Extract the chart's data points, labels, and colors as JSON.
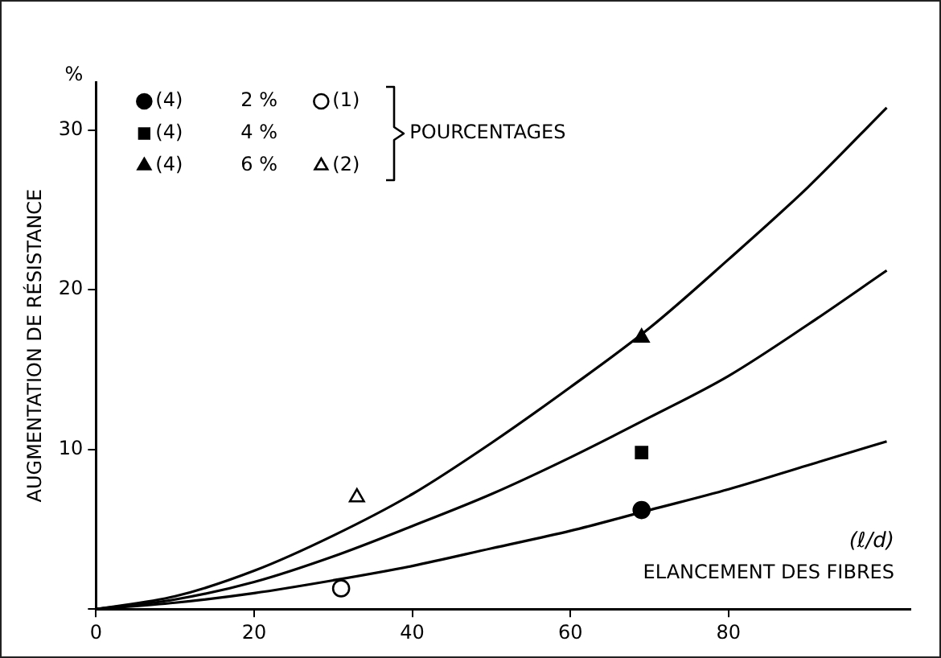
{
  "chart_data": {
    "type": "line",
    "ylabel": "AUGMENTATION DE RÉSISTANCE",
    "xlabel": "ELANCEMENT DES FIBRES",
    "annotations": [
      "2 %",
      "4 %",
      "6 %",
      "POURCENTAGES",
      "%",
      "(ℓ/d)"
    ],
    "xlim": [
      0,
      103
    ],
    "ylim": [
      0,
      33
    ],
    "xticks": [
      0,
      20,
      40,
      60,
      80
    ],
    "yticks": [
      {
        "value": 0,
        "label": null
      },
      10,
      20,
      30
    ],
    "grid": false,
    "legend": "top left",
    "series": [
      {
        "type": "line",
        "color": "#000000",
        "x": [
          0,
          10,
          20,
          30,
          40,
          50,
          60,
          70,
          80,
          90,
          100
        ],
        "values": [
          0,
          0.8,
          2.4,
          4.6,
          7.2,
          10.4,
          13.9,
          17.6,
          21.9,
          26.4,
          31.4
        ]
      },
      {
        "type": "line",
        "color": "#000000",
        "x": [
          0,
          10,
          20,
          30,
          40,
          50,
          60,
          70,
          80,
          90,
          100
        ],
        "values": [
          0,
          0.6,
          1.7,
          3.3,
          5.2,
          7.2,
          9.5,
          12,
          14.6,
          17.8,
          21.2
        ]
      },
      {
        "type": "line",
        "color": "#000000",
        "x": [
          0,
          10,
          20,
          30,
          40,
          50,
          60,
          70,
          80,
          90,
          100
        ],
        "values": [
          0,
          0.4,
          1,
          1.8,
          2.7,
          3.8,
          4.9,
          6.2,
          7.5,
          9,
          10.5
        ]
      },
      {
        "type": "scatter",
        "name": "(4)",
        "marker": "circle",
        "color": "#000000",
        "x": [
          69
        ],
        "values": [
          6.2
        ]
      },
      {
        "type": "scatter",
        "name": "(4)",
        "marker": "square",
        "color": "#000000",
        "x": [
          69
        ],
        "values": [
          9.8
        ]
      },
      {
        "type": "scatter",
        "name": "(4)",
        "marker": "triangle",
        "color": "#000000",
        "x": [
          69
        ],
        "values": [
          17
        ]
      },
      {
        "type": "scatter",
        "name": "(1)",
        "marker": "circle",
        "color": "#000000",
        "x": [
          31
        ],
        "values": [
          1.3
        ]
      },
      {
        "type": "scatter",
        "name": "(2)",
        "marker": "triangle",
        "color": "#000000",
        "x": [
          33
        ],
        "values": [
          7
        ]
      }
    ]
  }
}
